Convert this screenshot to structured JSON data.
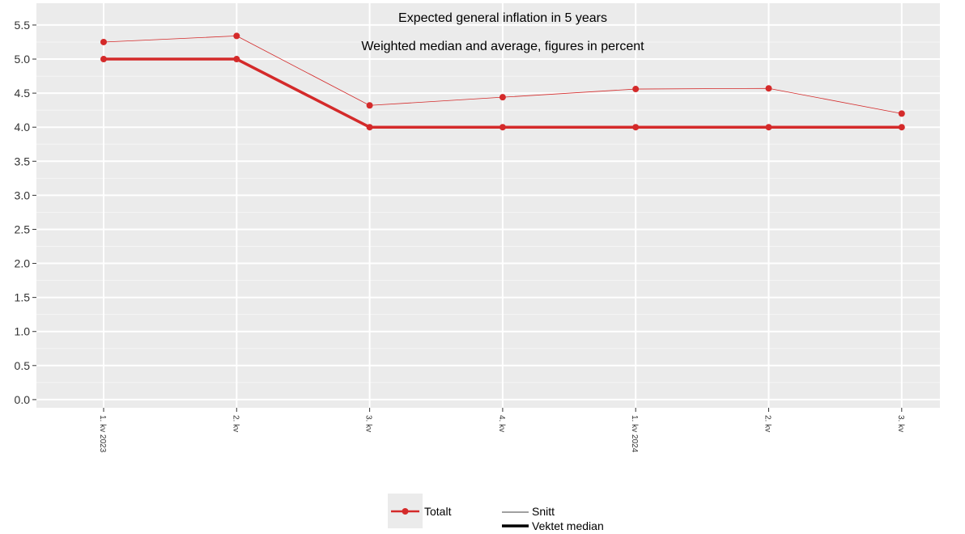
{
  "chart_data": {
    "type": "line",
    "title": "Expected general inflation in 5 years",
    "subtitle": "Weighted median and average, figures in percent",
    "categories": [
      "1. kv 2023",
      "2. kv",
      "3. kv",
      "4. kv",
      "1. kv 2024",
      "2. kv",
      "3. kv"
    ],
    "series": [
      {
        "name": "Snitt",
        "group": "Totalt",
        "values": [
          5.25,
          5.34,
          4.32,
          4.44,
          4.56,
          4.57,
          4.2
        ]
      },
      {
        "name": "Vektet median",
        "group": "Totalt",
        "values": [
          5.0,
          5.0,
          4.0,
          4.0,
          4.0,
          4.0,
          4.0
        ]
      }
    ],
    "ylim": [
      -0.12,
      5.82
    ],
    "yticks": [
      "0.0",
      "0.5",
      "1.0",
      "1.5",
      "2.0",
      "2.5",
      "3.0",
      "3.5",
      "4.0",
      "4.5",
      "5.0",
      "5.5"
    ],
    "grid": true,
    "legend": {
      "placement": "bottom",
      "color_entry": "Totalt",
      "size_entries": [
        "Snitt",
        "Vektet median"
      ]
    },
    "colors": {
      "series": "#d42a2a",
      "panel": "#ebebeb",
      "grid_major": "#ffffff",
      "grid_minor": "#f5f5f5"
    }
  }
}
